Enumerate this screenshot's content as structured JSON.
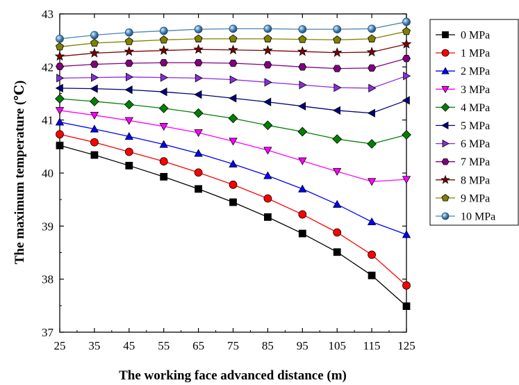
{
  "chart_data": {
    "type": "line",
    "xlabel": "The working face advanced distance (m)",
    "ylabel": "The maximum temperature (℃)",
    "x": [
      25,
      35,
      45,
      55,
      65,
      75,
      85,
      95,
      105,
      115,
      125
    ],
    "xlim": [
      25,
      125
    ],
    "ylim": [
      37,
      43
    ],
    "yticks": [
      37,
      38,
      39,
      40,
      41,
      42,
      43
    ],
    "grid": false,
    "legend_position": "right",
    "series": [
      {
        "name": "0 MPa",
        "color": "#000000",
        "marker": "square",
        "values": [
          40.52,
          40.34,
          40.14,
          39.93,
          39.7,
          39.45,
          39.17,
          38.86,
          38.51,
          38.07,
          37.49
        ]
      },
      {
        "name": "1 MPa",
        "color": "#ff0000",
        "marker": "circle",
        "values": [
          40.73,
          40.58,
          40.4,
          40.22,
          40.01,
          39.78,
          39.52,
          39.22,
          38.88,
          38.46,
          37.88
        ]
      },
      {
        "name": "2 MPa",
        "color": "#0000ff",
        "marker": "triangle-up",
        "values": [
          40.96,
          40.83,
          40.69,
          40.54,
          40.37,
          40.17,
          39.95,
          39.7,
          39.41,
          39.08,
          38.84
        ]
      },
      {
        "name": "3 MPa",
        "color": "#ff00ff",
        "marker": "triangle-down",
        "values": [
          41.18,
          41.09,
          40.99,
          40.88,
          40.76,
          40.6,
          40.43,
          40.23,
          40.03,
          39.84,
          39.88
        ]
      },
      {
        "name": "4 MPa",
        "color": "#008000",
        "marker": "diamond",
        "values": [
          41.4,
          41.35,
          41.29,
          41.22,
          41.13,
          41.03,
          40.9,
          40.78,
          40.64,
          40.55,
          40.72
        ]
      },
      {
        "name": "5 MPa",
        "color": "#000080",
        "marker": "triangle-left",
        "values": [
          41.6,
          41.59,
          41.57,
          41.53,
          41.48,
          41.41,
          41.34,
          41.26,
          41.18,
          41.13,
          41.37
        ]
      },
      {
        "name": "6 MPa",
        "color": "#8a2be2",
        "marker": "triangle-right",
        "values": [
          41.79,
          41.8,
          41.81,
          41.8,
          41.79,
          41.76,
          41.71,
          41.66,
          41.61,
          41.6,
          41.83
        ]
      },
      {
        "name": "7 MPa",
        "color": "#800080",
        "marker": "hexagon",
        "values": [
          42.01,
          42.05,
          42.07,
          42.08,
          42.08,
          42.07,
          42.04,
          42.0,
          41.97,
          41.98,
          42.16
        ]
      },
      {
        "name": "8 MPa",
        "color": "#800000",
        "marker": "star",
        "values": [
          42.2,
          42.26,
          42.29,
          42.31,
          42.33,
          42.32,
          42.31,
          42.29,
          42.27,
          42.28,
          42.43
        ]
      },
      {
        "name": "9 MPa",
        "color": "#808000",
        "marker": "pentagon",
        "values": [
          42.38,
          42.45,
          42.48,
          42.51,
          42.53,
          42.53,
          42.53,
          42.52,
          42.51,
          42.53,
          42.67
        ]
      },
      {
        "name": "10 MPa",
        "color": "#4682b4",
        "marker": "sphere",
        "values": [
          42.53,
          42.6,
          42.65,
          42.68,
          42.71,
          42.72,
          42.72,
          42.71,
          42.71,
          42.72,
          42.85
        ]
      }
    ]
  }
}
